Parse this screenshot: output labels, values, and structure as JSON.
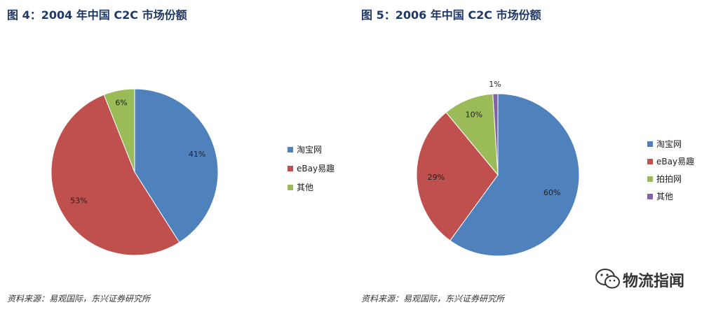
{
  "chart_data": [
    {
      "type": "pie",
      "title": "图 4：2004 年中国 C2C 市场份额",
      "source": "资料来源：易观国际，东兴证券研究所",
      "slices": [
        {
          "label": "淘宝网",
          "value": 41,
          "display": "41%",
          "color": "#4f81bd"
        },
        {
          "label": "eBay易趣",
          "value": 53,
          "display": "53%",
          "color": "#c0504d"
        },
        {
          "label": "其他",
          "value": 6,
          "display": "6%",
          "color": "#9bbb59"
        }
      ],
      "legend": "right"
    },
    {
      "type": "pie",
      "title": "图 5：2006 年中国 C2C 市场份额",
      "source": "资料来源：易观国际，东兴证券研究所",
      "slices": [
        {
          "label": "淘宝网",
          "value": 60,
          "display": "60%",
          "color": "#4f81bd"
        },
        {
          "label": "eBay易趣",
          "value": 29,
          "display": "29%",
          "color": "#c0504d"
        },
        {
          "label": "拍拍网",
          "value": 10,
          "display": "10%",
          "color": "#9bbb59"
        },
        {
          "label": "其他",
          "value": 1,
          "display": "1%",
          "color": "#8064a2"
        }
      ],
      "legend": "right"
    }
  ],
  "watermark": {
    "text": "物流指闻",
    "icon": "wechat-icon"
  }
}
